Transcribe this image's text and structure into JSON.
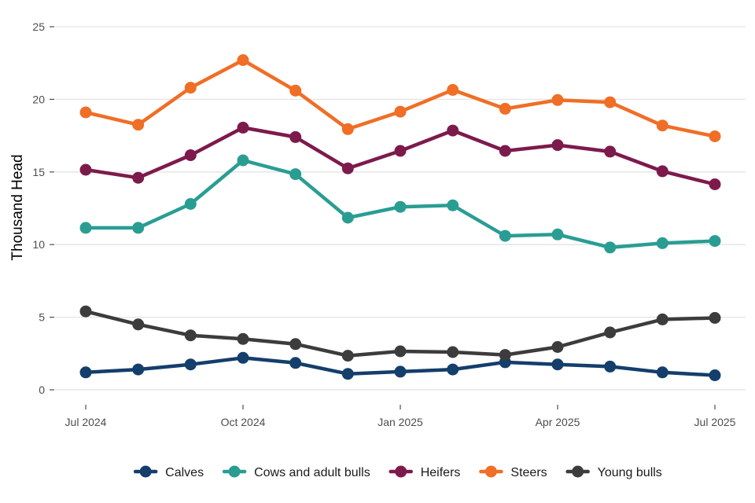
{
  "chart_data": {
    "type": "line",
    "title": "",
    "xlabel": "",
    "ylabel": "Thousand Head",
    "ylim": [
      0,
      25
    ],
    "yticks": [
      "0",
      "5",
      "10",
      "15",
      "20",
      "25"
    ],
    "x": [
      "2024-07",
      "2024-08",
      "2024-09",
      "2024-10",
      "2024-11",
      "2024-12",
      "2025-01",
      "2025-02",
      "2025-03",
      "2025-04",
      "2025-05",
      "2025-06",
      "2025-07"
    ],
    "xticks": [
      {
        "month": "2024-07",
        "label": "Jul 2024"
      },
      {
        "month": "2024-10",
        "label": "Oct 2024"
      },
      {
        "month": "2025-01",
        "label": "Jan 2025"
      },
      {
        "month": "2025-04",
        "label": "Apr 2025"
      },
      {
        "month": "2025-07",
        "label": "Jul 2025"
      }
    ],
    "grid": true,
    "legend_position": "bottom",
    "series": [
      {
        "name": "Calves",
        "color": "#143e6b",
        "values": [
          1.2,
          1.4,
          1.75,
          2.2,
          1.85,
          1.1,
          1.25,
          1.4,
          1.9,
          1.75,
          1.6,
          1.2,
          1.0
        ]
      },
      {
        "name": "Cows and adult bulls",
        "color": "#2a9d93",
        "values": [
          11.15,
          11.15,
          12.8,
          15.8,
          14.85,
          11.85,
          12.6,
          12.7,
          10.6,
          10.7,
          9.8,
          10.1,
          10.25
        ]
      },
      {
        "name": "Heifers",
        "color": "#7d1a4c",
        "values": [
          15.15,
          14.6,
          16.15,
          18.05,
          17.4,
          15.25,
          16.45,
          17.85,
          16.45,
          16.85,
          16.4,
          15.05,
          14.15
        ]
      },
      {
        "name": "Steers",
        "color": "#f06e26",
        "values": [
          19.1,
          18.25,
          20.8,
          22.7,
          20.6,
          17.95,
          19.15,
          20.65,
          19.35,
          19.95,
          19.8,
          18.2,
          17.45
        ]
      },
      {
        "name": "Young bulls",
        "color": "#3c3c3c",
        "values": [
          5.4,
          4.5,
          3.75,
          3.5,
          3.15,
          2.35,
          2.65,
          2.6,
          2.4,
          2.95,
          3.95,
          4.85,
          4.95
        ]
      }
    ]
  }
}
